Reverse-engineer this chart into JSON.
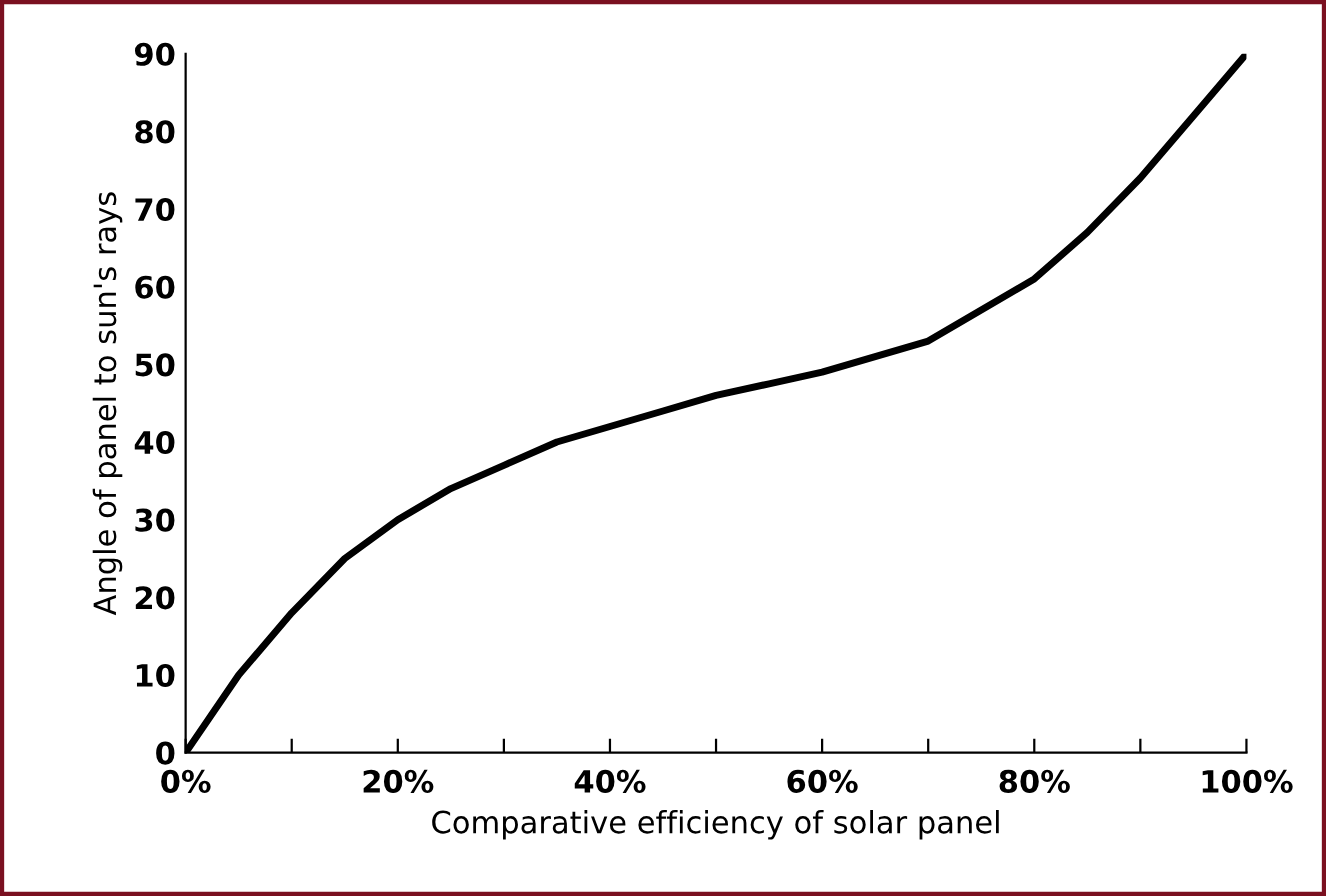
{
  "chart_data": {
    "type": "line",
    "xlabel": "Comparative efficiency of solar panel",
    "ylabel": "Angle of panel to sun's rays",
    "x": [
      0,
      5,
      10,
      15,
      20,
      25,
      30,
      35,
      40,
      45,
      50,
      55,
      60,
      65,
      70,
      75,
      80,
      85,
      90,
      95,
      100
    ],
    "series": [
      {
        "color": "#000000",
        "values": [
          0,
          10,
          18,
          25,
          30,
          34,
          37,
          40,
          42,
          44,
          46,
          47.5,
          49,
          51,
          53,
          57,
          61,
          67,
          74,
          82,
          90
        ]
      }
    ],
    "xlim": [
      0,
      100
    ],
    "ylim": [
      0,
      90
    ],
    "xticks": [
      {
        "value": 0,
        "label": "0%"
      },
      {
        "value": 10,
        "label": null
      },
      {
        "value": 20,
        "label": "20%"
      },
      {
        "value": 30,
        "label": null
      },
      {
        "value": 40,
        "label": "40%"
      },
      {
        "value": 50,
        "label": null
      },
      {
        "value": 60,
        "label": "60%"
      },
      {
        "value": 70,
        "label": null
      },
      {
        "value": 80,
        "label": "80%"
      },
      {
        "value": 90,
        "label": null
      },
      {
        "value": 100,
        "label": "100%"
      }
    ],
    "yticks": [
      0,
      10,
      20,
      30,
      40,
      50,
      60,
      70,
      80,
      90
    ],
    "grid": false,
    "legend": false,
    "marker": "none",
    "line_style": "solid"
  }
}
